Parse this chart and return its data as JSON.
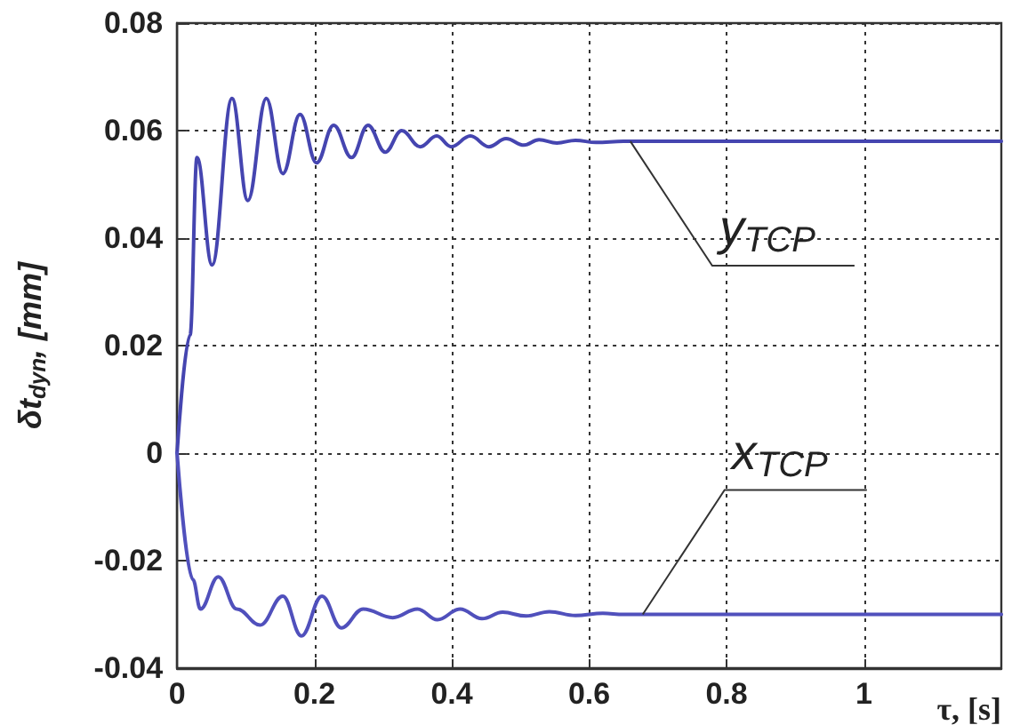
{
  "chart_data": {
    "type": "line",
    "xlabel": "τ, [s]",
    "ylabel": "δt$_{dyn}$, [mm]",
    "xlim": [
      0,
      1.2
    ],
    "xticks": [
      0,
      0.2,
      0.4,
      0.6,
      0.8,
      1
    ],
    "ylim": [
      -0.04,
      0.08
    ],
    "yticks": [
      -0.04,
      -0.02,
      0,
      0.02,
      0.04,
      0.06,
      0.08
    ],
    "grid": true,
    "line_style": "solid",
    "marker": "none",
    "series": [
      {
        "name": "y$_{TCP}$",
        "color": "#4545b0",
        "x": [
          0,
          0.019,
          0.029,
          0.051,
          0.08,
          0.103,
          0.13,
          0.154,
          0.179,
          0.203,
          0.228,
          0.254,
          0.278,
          0.303,
          0.327,
          0.354,
          0.378,
          0.399,
          0.427,
          0.454,
          0.479,
          0.505,
          0.527,
          0.553,
          0.58,
          0.61,
          0.65,
          1.2
        ],
        "values": [
          0,
          0.022,
          0.055,
          0.035,
          0.066,
          0.047,
          0.066,
          0.052,
          0.063,
          0.054,
          0.061,
          0.055,
          0.061,
          0.056,
          0.06,
          0.057,
          0.059,
          0.057,
          0.059,
          0.057,
          0.0585,
          0.0573,
          0.0583,
          0.0577,
          0.0582,
          0.0578,
          0.058,
          0.058
        ]
      },
      {
        "name": "x$_{TCP}$",
        "color": "#5050bc",
        "x": [
          0,
          0.023,
          0.034,
          0.06,
          0.087,
          0.121,
          0.154,
          0.181,
          0.211,
          0.239,
          0.271,
          0.314,
          0.35,
          0.379,
          0.412,
          0.444,
          0.474,
          0.508,
          0.542,
          0.58,
          0.62,
          0.65,
          1.2
        ],
        "values": [
          0,
          -0.0235,
          -0.029,
          -0.023,
          -0.029,
          -0.032,
          -0.0266,
          -0.034,
          -0.0266,
          -0.0325,
          -0.029,
          -0.0306,
          -0.029,
          -0.031,
          -0.029,
          -0.0308,
          -0.0296,
          -0.0303,
          -0.0295,
          -0.0302,
          -0.0298,
          -0.03,
          -0.03
        ]
      }
    ]
  }
}
